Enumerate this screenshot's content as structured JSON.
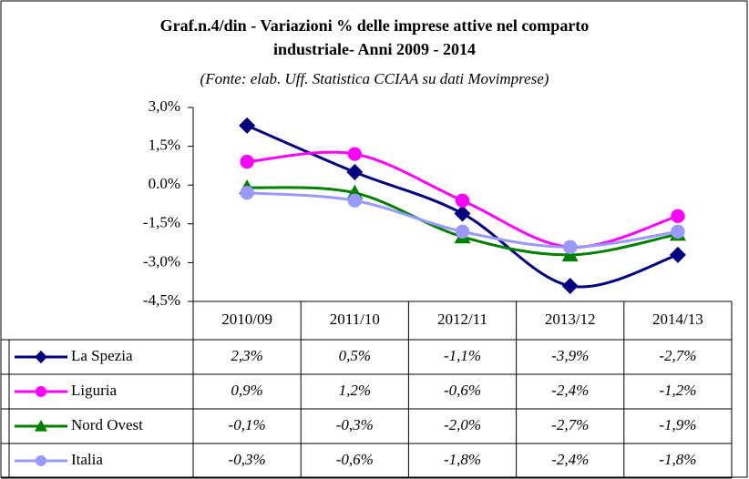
{
  "chart_data": {
    "type": "line",
    "title": [
      "Graf.n.4/din - Variazioni % delle imprese attive nel comparto",
      "industriale- Anni 2009 - 2014"
    ],
    "subtitle": "(Fonte: elab. Uff. Statistica CCIAA su dati Movimprese)",
    "categories": [
      "2010/09",
      "2011/10",
      "2012/11",
      "2013/12",
      "2014/13"
    ],
    "series": [
      {
        "name": "La Spezia",
        "color": "#000080",
        "marker": "diamond",
        "values": [
          2.3,
          0.5,
          -1.1,
          -3.9,
          -2.7
        ],
        "value_labels": [
          "2,3%",
          "0,5%",
          "-1,1%",
          "-3,9%",
          "-2,7%"
        ]
      },
      {
        "name": "Liguria",
        "color": "#ff00ff",
        "marker": "circle",
        "values": [
          0.9,
          1.2,
          -0.6,
          -2.4,
          -1.2
        ],
        "value_labels": [
          "0,9%",
          "1,2%",
          "-0,6%",
          "-2,4%",
          "-1,2%"
        ]
      },
      {
        "name": "Nord Ovest",
        "color": "#008000",
        "marker": "triangle",
        "values": [
          -0.1,
          -0.3,
          -2.0,
          -2.7,
          -1.9
        ],
        "value_labels": [
          "-0,1%",
          "-0,3%",
          "-2,0%",
          "-2,7%",
          "-1,9%"
        ]
      },
      {
        "name": "Italia",
        "color": "#9999ff",
        "marker": "circle",
        "values": [
          -0.3,
          -0.6,
          -1.8,
          -2.4,
          -1.8
        ],
        "value_labels": [
          "-0,3%",
          "-0,6%",
          "-1,8%",
          "-2,4%",
          "-1,8%"
        ]
      }
    ],
    "ylim": [
      -4.5,
      3.0
    ],
    "yticks": [
      {
        "value": -4.5,
        "label": "-4,5%"
      },
      {
        "value": -3.0,
        "label": "-3,0%"
      },
      {
        "value": -1.5,
        "label": "-1,5%"
      },
      {
        "value": 0,
        "label": "0.0%"
      },
      {
        "value": 1.5,
        "label": "1,5%"
      },
      {
        "value": 3.0,
        "label": "3,0%"
      }
    ],
    "grid": false
  }
}
